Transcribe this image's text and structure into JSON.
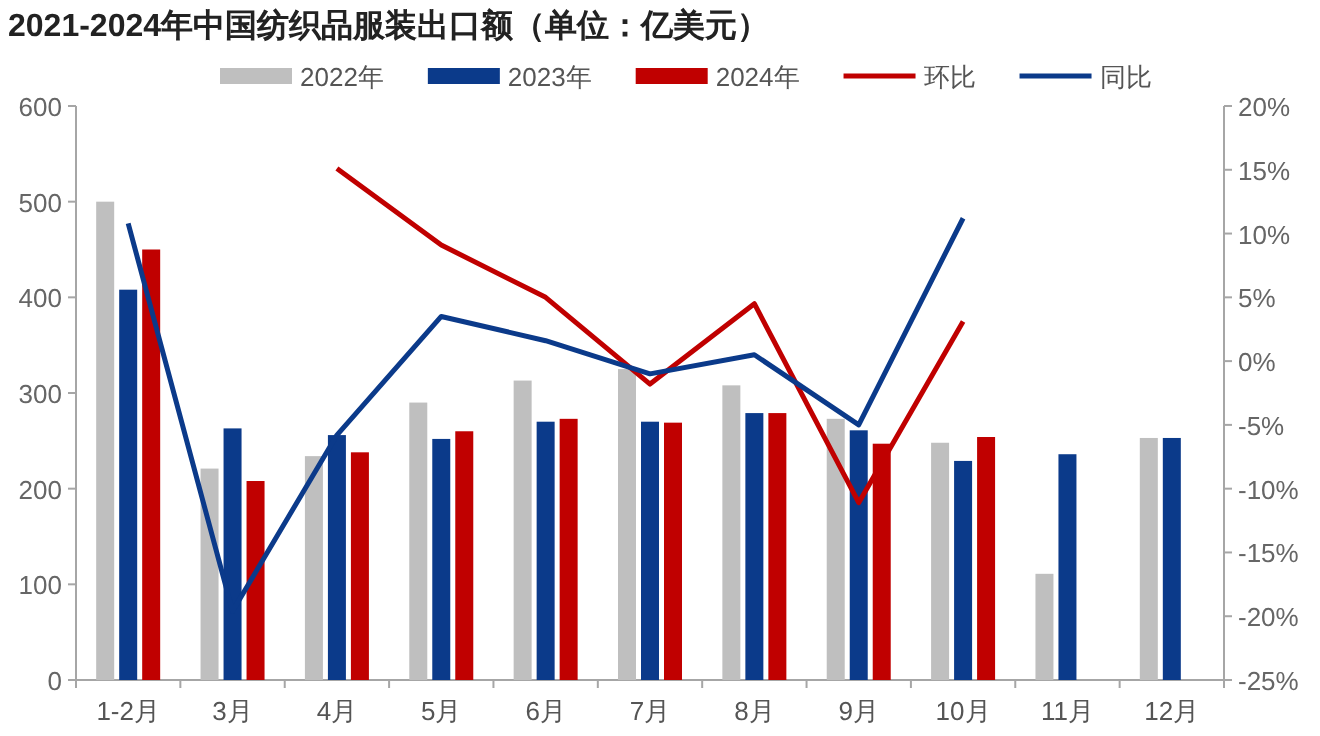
{
  "chart_data": {
    "type": "bar",
    "title": "2021-2024年中国纺织品服装出口额（单位：亿美元）",
    "categories": [
      "1-2月",
      "3月",
      "4月",
      "5月",
      "6月",
      "7月",
      "8月",
      "9月",
      "10月",
      "11月",
      "12月"
    ],
    "series": [
      {
        "name": "2022年",
        "color": "#bfbfbf",
        "values": [
          500,
          221,
          234,
          290,
          313,
          325,
          308,
          273,
          248,
          111,
          253
        ]
      },
      {
        "name": "2023年",
        "color": "#0b3a8a",
        "values": [
          408,
          263,
          256,
          252,
          270,
          270,
          279,
          261,
          229,
          236,
          253
        ]
      },
      {
        "name": "2024年",
        "color": "#c00000",
        "values": [
          450,
          208,
          238,
          260,
          273,
          269,
          279,
          247,
          254,
          null,
          null
        ]
      },
      {
        "name": "环比",
        "type": "line",
        "axis": "y2",
        "color": "#c00000",
        "values": [
          null,
          null,
          15.1,
          9.1,
          5.0,
          -1.8,
          4.5,
          -11.1,
          3.1,
          null,
          null
        ]
      },
      {
        "name": "同比",
        "type": "line",
        "axis": "y2",
        "color": "#0b3a8a",
        "values": [
          10.8,
          -19.6,
          -5.8,
          3.5,
          1.6,
          -1.0,
          0.5,
          -5.0,
          11.2,
          null,
          null
        ]
      }
    ],
    "ylim": [
      0,
      600
    ],
    "yticks": [
      0,
      100,
      200,
      300,
      400,
      500,
      600
    ],
    "y2lim": [
      -25,
      20
    ],
    "y2ticks": [
      {
        "value": -25,
        "label": "-25%"
      },
      {
        "value": -20,
        "label": "-20%"
      },
      {
        "value": -15,
        "label": "-15%"
      },
      {
        "value": -10,
        "label": "-10%"
      },
      {
        "value": -5,
        "label": "-5%"
      },
      {
        "value": 0,
        "label": "0%"
      },
      {
        "value": 5,
        "label": "5%"
      },
      {
        "value": 10,
        "label": "10%"
      },
      {
        "value": 15,
        "label": "15%"
      },
      {
        "value": 20,
        "label": "20%"
      }
    ],
    "legend": "top",
    "grid": false
  }
}
